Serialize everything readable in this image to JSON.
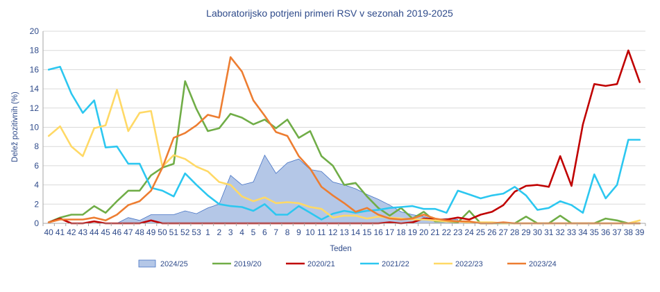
{
  "chart_data": {
    "type": "line",
    "title": "Laboratorijsko potrjeni primeri RSV v sezonah 2019-2025",
    "xlabel": "Teden",
    "ylabel": "Delež pozitivnih (%)",
    "ylim": [
      0,
      20
    ],
    "yticks": [
      0,
      2,
      4,
      6,
      8,
      10,
      12,
      14,
      16,
      18,
      20
    ],
    "grid": "horizontal",
    "legend_position": "bottom",
    "categories": [
      "40",
      "41",
      "42",
      "43",
      "44",
      "45",
      "46",
      "47",
      "48",
      "49",
      "50",
      "51",
      "52",
      "53",
      "1",
      "2",
      "3",
      "4",
      "5",
      "6",
      "7",
      "8",
      "9",
      "10",
      "11",
      "12",
      "13",
      "14",
      "15",
      "16",
      "17",
      "18",
      "19",
      "20",
      "21",
      "22",
      "23",
      "24",
      "25",
      "26",
      "27",
      "28",
      "29",
      "30",
      "31",
      "32",
      "33",
      "34",
      "35",
      "36",
      "37",
      "38",
      "39"
    ],
    "series": [
      {
        "name": "2024/25",
        "kind": "area",
        "color": "#b4c7e7",
        "stroke": "#4472c4",
        "values": [
          0,
          0,
          0,
          0,
          0,
          0,
          0,
          0.6,
          0.3,
          0.9,
          0.9,
          0.9,
          1.3,
          1.0,
          1.6,
          2.0,
          5.0,
          4.0,
          4.3,
          7.1,
          5.2,
          6.3,
          6.7,
          5.6,
          5.4,
          4.3,
          4.0,
          3.6,
          3.0,
          2.5,
          1.9,
          1.2,
          0.9,
          0.7,
          0.4,
          0.5,
          0.4,
          null,
          null,
          null,
          null,
          null,
          null,
          null,
          null,
          null,
          null,
          null,
          null,
          null,
          null,
          null,
          null
        ]
      },
      {
        "name": "2019/20",
        "kind": "line",
        "color": "#70ad47",
        "values": [
          0.1,
          0.6,
          0.9,
          0.9,
          1.8,
          1.1,
          2.3,
          3.4,
          3.4,
          5.0,
          5.8,
          6.2,
          14.8,
          11.9,
          9.6,
          9.9,
          11.4,
          11.0,
          10.3,
          10.8,
          9.9,
          10.8,
          8.9,
          9.6,
          7.0,
          6.0,
          4.0,
          4.2,
          2.8,
          1.6,
          0.8,
          1.6,
          0.5,
          1.2,
          0.2,
          0.2,
          0.1,
          1.3,
          0,
          0,
          0,
          0,
          0.7,
          0,
          0,
          0.8,
          0,
          0,
          0,
          0.5,
          0.3,
          0,
          0
        ]
      },
      {
        "name": "2020/21",
        "kind": "line",
        "color": "#c00000",
        "values": [
          0.1,
          0.5,
          0,
          0,
          0.2,
          0,
          0,
          0,
          0,
          0.3,
          0,
          0,
          0,
          0,
          0,
          0,
          0,
          0,
          0,
          0,
          0,
          0,
          0,
          0,
          0,
          0,
          0,
          0,
          0,
          0,
          0.1,
          0,
          0.1,
          0.5,
          0.4,
          0.4,
          0.6,
          0.4,
          0.9,
          1.2,
          1.9,
          3.3,
          3.9,
          4.0,
          3.8,
          7.0,
          3.9,
          10.3,
          14.5,
          14.3,
          14.5,
          18.0,
          14.7
        ]
      },
      {
        "name": "2021/22",
        "kind": "line",
        "color": "#2cc7f0",
        "values": [
          16.0,
          16.3,
          13.5,
          11.5,
          12.8,
          7.9,
          8.0,
          6.2,
          6.2,
          3.7,
          3.4,
          2.8,
          5.2,
          4.0,
          2.9,
          2.0,
          1.8,
          1.7,
          1.3,
          2.0,
          0.9,
          0.9,
          1.8,
          1.1,
          0.4,
          1.0,
          1.3,
          1.1,
          1.3,
          1.4,
          1.6,
          1.7,
          1.8,
          1.5,
          1.5,
          1.1,
          3.4,
          3.0,
          2.6,
          2.9,
          3.1,
          3.8,
          2.9,
          1.4,
          1.6,
          2.3,
          1.9,
          1.1,
          5.1,
          2.6,
          4.0,
          8.7,
          8.7
        ]
      },
      {
        "name": "2022/23",
        "kind": "line",
        "color": "#ffd966",
        "values": [
          9.1,
          10.1,
          8.0,
          7.0,
          9.9,
          10.2,
          13.9,
          9.6,
          11.5,
          11.7,
          5.9,
          7.1,
          6.7,
          5.9,
          5.4,
          4.3,
          4.0,
          2.8,
          2.3,
          2.7,
          2.1,
          2.2,
          2.1,
          1.7,
          1.5,
          0.6,
          0.8,
          0.8,
          0.5,
          0.7,
          0.6,
          0.5,
          0.4,
          0.4,
          0.3,
          0.2,
          0.2,
          0.1,
          0.1,
          0.1,
          0,
          0,
          0,
          0,
          0,
          0,
          0,
          0,
          0,
          0,
          0,
          0,
          0.3
        ]
      },
      {
        "name": "2023/24",
        "kind": "line",
        "color": "#ed7d31",
        "values": [
          0.1,
          0.4,
          0.4,
          0.4,
          0.6,
          0.3,
          0.9,
          1.9,
          2.3,
          3.4,
          5.8,
          8.9,
          9.4,
          10.2,
          11.3,
          11.0,
          17.3,
          15.8,
          12.8,
          11.2,
          9.5,
          9.1,
          7.0,
          5.7,
          3.8,
          2.9,
          2.1,
          1.2,
          1.6,
          0.9,
          0.5,
          0.4,
          0.5,
          0.9,
          0.5,
          0.3,
          0.2,
          0.2,
          0,
          0,
          0.1,
          0,
          0,
          0,
          0,
          0,
          0,
          0,
          0,
          0,
          0,
          0,
          0
        ]
      }
    ]
  }
}
